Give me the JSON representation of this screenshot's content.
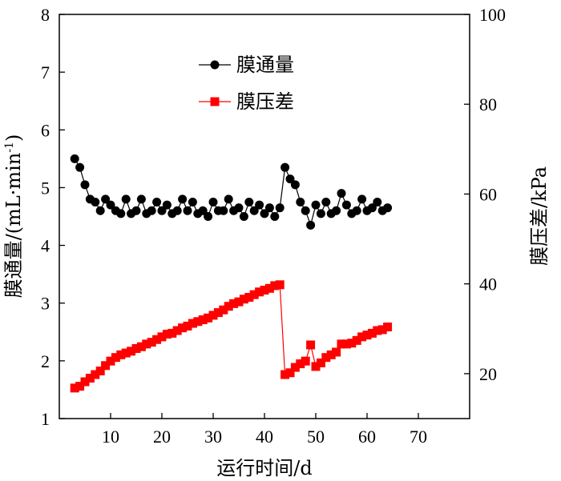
{
  "chart_data": {
    "type": "line",
    "xlabel": "运行时间/d",
    "ylabel_left": "膜通量/(mL·min",
    "ylabel_left_sup": "-1",
    "ylabel_left_close": ")",
    "ylabel_right": "膜压差/kPa",
    "xlim": [
      0,
      80
    ],
    "ylim_left": [
      1,
      8
    ],
    "ylim_right": [
      10,
      100
    ],
    "x_ticks": [
      10,
      20,
      30,
      40,
      50,
      60,
      70
    ],
    "y_left_ticks": [
      1,
      2,
      3,
      4,
      5,
      6,
      7,
      8
    ],
    "y_right_ticks": [
      20,
      40,
      60,
      80,
      100
    ],
    "legend_position": "top-center",
    "series": [
      {
        "name": "膜通量",
        "axis": "left",
        "color": "#000000",
        "marker": "circle",
        "x": [
          3,
          4,
          5,
          6,
          7,
          8,
          9,
          10,
          11,
          12,
          13,
          14,
          15,
          16,
          17,
          18,
          19,
          20,
          21,
          22,
          23,
          24,
          25,
          26,
          27,
          28,
          29,
          30,
          31,
          32,
          33,
          34,
          35,
          36,
          37,
          38,
          39,
          40,
          41,
          42,
          43,
          44,
          45,
          46,
          47,
          48,
          49,
          50,
          51,
          52,
          53,
          54,
          55,
          56,
          57,
          58,
          59,
          60,
          61,
          62,
          63,
          64
        ],
        "values": [
          5.5,
          5.35,
          5.05,
          4.8,
          4.75,
          4.6,
          4.8,
          4.7,
          4.6,
          4.55,
          4.8,
          4.55,
          4.6,
          4.8,
          4.55,
          4.6,
          4.75,
          4.6,
          4.7,
          4.55,
          4.6,
          4.8,
          4.6,
          4.75,
          4.55,
          4.6,
          4.5,
          4.75,
          4.6,
          4.6,
          4.8,
          4.6,
          4.65,
          4.5,
          4.75,
          4.6,
          4.7,
          4.55,
          4.65,
          4.5,
          4.65,
          5.35,
          5.15,
          5.05,
          4.75,
          4.6,
          4.35,
          4.7,
          4.55,
          4.75,
          4.55,
          4.6,
          4.9,
          4.7,
          4.55,
          4.6,
          4.8,
          4.6,
          4.65,
          4.75,
          4.6,
          4.65
        ]
      },
      {
        "name": "膜压差",
        "axis": "right",
        "color": "#ff0000",
        "marker": "square",
        "x": [
          3,
          4,
          5,
          6,
          7,
          8,
          9,
          10,
          11,
          12,
          13,
          14,
          15,
          16,
          17,
          18,
          19,
          20,
          21,
          22,
          23,
          24,
          25,
          26,
          27,
          28,
          29,
          30,
          31,
          32,
          33,
          34,
          35,
          36,
          37,
          38,
          39,
          40,
          41,
          42,
          43,
          44,
          45,
          46,
          47,
          48,
          49,
          50,
          51,
          52,
          53,
          54,
          55,
          56,
          57,
          58,
          59,
          60,
          61,
          62,
          63,
          64
        ],
        "values": [
          16.8,
          17.2,
          18.2,
          19.0,
          19.8,
          20.6,
          21.8,
          22.8,
          23.6,
          24.2,
          24.6,
          25.0,
          25.6,
          26.0,
          26.6,
          27.0,
          27.6,
          28.2,
          28.8,
          29.0,
          29.6,
          30.2,
          30.6,
          31.2,
          31.6,
          32.0,
          32.4,
          33.0,
          33.6,
          34.2,
          35.0,
          35.6,
          36.0,
          36.6,
          37.0,
          37.6,
          38.2,
          38.6,
          39.0,
          39.6,
          39.8,
          19.8,
          20.2,
          21.4,
          22.2,
          22.8,
          26.4,
          21.6,
          22.4,
          23.6,
          24.2,
          24.8,
          26.6,
          26.6,
          26.8,
          27.4,
          28.2,
          28.6,
          29.0,
          29.6,
          29.8,
          30.4
        ]
      }
    ]
  }
}
